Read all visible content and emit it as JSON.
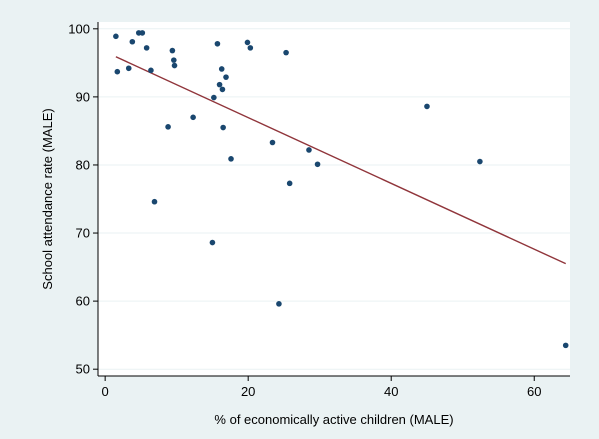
{
  "chart_data": {
    "type": "scatter",
    "title": "",
    "xlabel": "% of economically active children (MALE)",
    "ylabel": "School attendance rate (MALE)",
    "xlim": [
      -1,
      65
    ],
    "ylim": [
      49,
      101
    ],
    "xticks": [
      0,
      20,
      40,
      60
    ],
    "yticks": [
      50,
      60,
      70,
      80,
      90,
      100
    ],
    "grid": "horizontal",
    "legend": "none",
    "colors": {
      "outer_background": "#eaf2f3",
      "plot_background": "#ffffff",
      "gridline": "#eaf2f3",
      "point": "#1a476f",
      "fit_line": "#90353b",
      "axis": "#000000"
    },
    "series": [
      {
        "kind": "points",
        "points": [
          {
            "x": 1.5,
            "y": 98.9
          },
          {
            "x": 1.7,
            "y": 93.7
          },
          {
            "x": 3.3,
            "y": 94.2
          },
          {
            "x": 3.8,
            "y": 98.1
          },
          {
            "x": 4.7,
            "y": 99.4
          },
          {
            "x": 5.2,
            "y": 99.4
          },
          {
            "x": 5.8,
            "y": 97.2
          },
          {
            "x": 6.4,
            "y": 93.9
          },
          {
            "x": 6.9,
            "y": 74.6
          },
          {
            "x": 8.8,
            "y": 85.6
          },
          {
            "x": 9.4,
            "y": 96.8
          },
          {
            "x": 9.6,
            "y": 95.4
          },
          {
            "x": 9.7,
            "y": 94.6
          },
          {
            "x": 12.3,
            "y": 87.0
          },
          {
            "x": 15.0,
            "y": 68.6
          },
          {
            "x": 15.2,
            "y": 89.9
          },
          {
            "x": 15.7,
            "y": 97.8
          },
          {
            "x": 16.0,
            "y": 91.8
          },
          {
            "x": 16.3,
            "y": 94.1
          },
          {
            "x": 16.4,
            "y": 91.1
          },
          {
            "x": 16.5,
            "y": 85.5
          },
          {
            "x": 16.9,
            "y": 92.9
          },
          {
            "x": 17.6,
            "y": 80.9
          },
          {
            "x": 19.9,
            "y": 98.0
          },
          {
            "x": 20.3,
            "y": 97.2
          },
          {
            "x": 23.4,
            "y": 83.3
          },
          {
            "x": 24.3,
            "y": 59.6
          },
          {
            "x": 25.3,
            "y": 96.5
          },
          {
            "x": 25.8,
            "y": 77.3
          },
          {
            "x": 28.5,
            "y": 82.2
          },
          {
            "x": 29.7,
            "y": 80.1
          },
          {
            "x": 45.0,
            "y": 88.6
          },
          {
            "x": 52.4,
            "y": 80.5
          },
          {
            "x": 64.4,
            "y": 53.5
          }
        ]
      },
      {
        "kind": "fitted-line",
        "points": [
          {
            "x": 1.5,
            "y": 95.9
          },
          {
            "x": 64.4,
            "y": 65.5
          }
        ]
      }
    ]
  }
}
